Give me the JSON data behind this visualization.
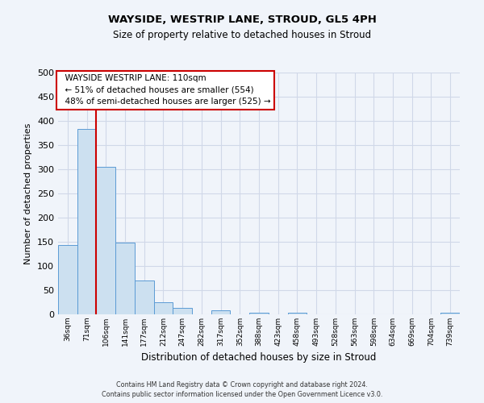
{
  "title": "WAYSIDE, WESTRIP LANE, STROUD, GL5 4PH",
  "subtitle": "Size of property relative to detached houses in Stroud",
  "xlabel": "Distribution of detached houses by size in Stroud",
  "ylabel": "Number of detached properties",
  "bin_labels": [
    "36sqm",
    "71sqm",
    "106sqm",
    "141sqm",
    "177sqm",
    "212sqm",
    "247sqm",
    "282sqm",
    "317sqm",
    "352sqm",
    "388sqm",
    "423sqm",
    "458sqm",
    "493sqm",
    "528sqm",
    "563sqm",
    "598sqm",
    "634sqm",
    "669sqm",
    "704sqm",
    "739sqm"
  ],
  "bin_values": [
    144,
    384,
    305,
    149,
    70,
    25,
    13,
    0,
    9,
    0,
    4,
    0,
    3,
    0,
    0,
    0,
    0,
    0,
    0,
    0,
    3
  ],
  "bar_facecolor": "#cce0f0",
  "bar_edgecolor": "#5b9bd5",
  "grid_color": "#d0d8e8",
  "background_color": "#f0f4fa",
  "property_size_label": "WAYSIDE WESTRIP LANE: 110sqm",
  "smaller_pct": 51,
  "smaller_count": 554,
  "larger_pct": 48,
  "larger_count": 525,
  "red_line_color": "#cc0000",
  "annotation_box_edgecolor": "#cc0000",
  "ylim": [
    0,
    500
  ],
  "yticks": [
    0,
    50,
    100,
    150,
    200,
    250,
    300,
    350,
    400,
    450,
    500
  ],
  "footer1": "Contains HM Land Registry data © Crown copyright and database right 2024.",
  "footer2": "Contains public sector information licensed under the Open Government Licence v3.0."
}
